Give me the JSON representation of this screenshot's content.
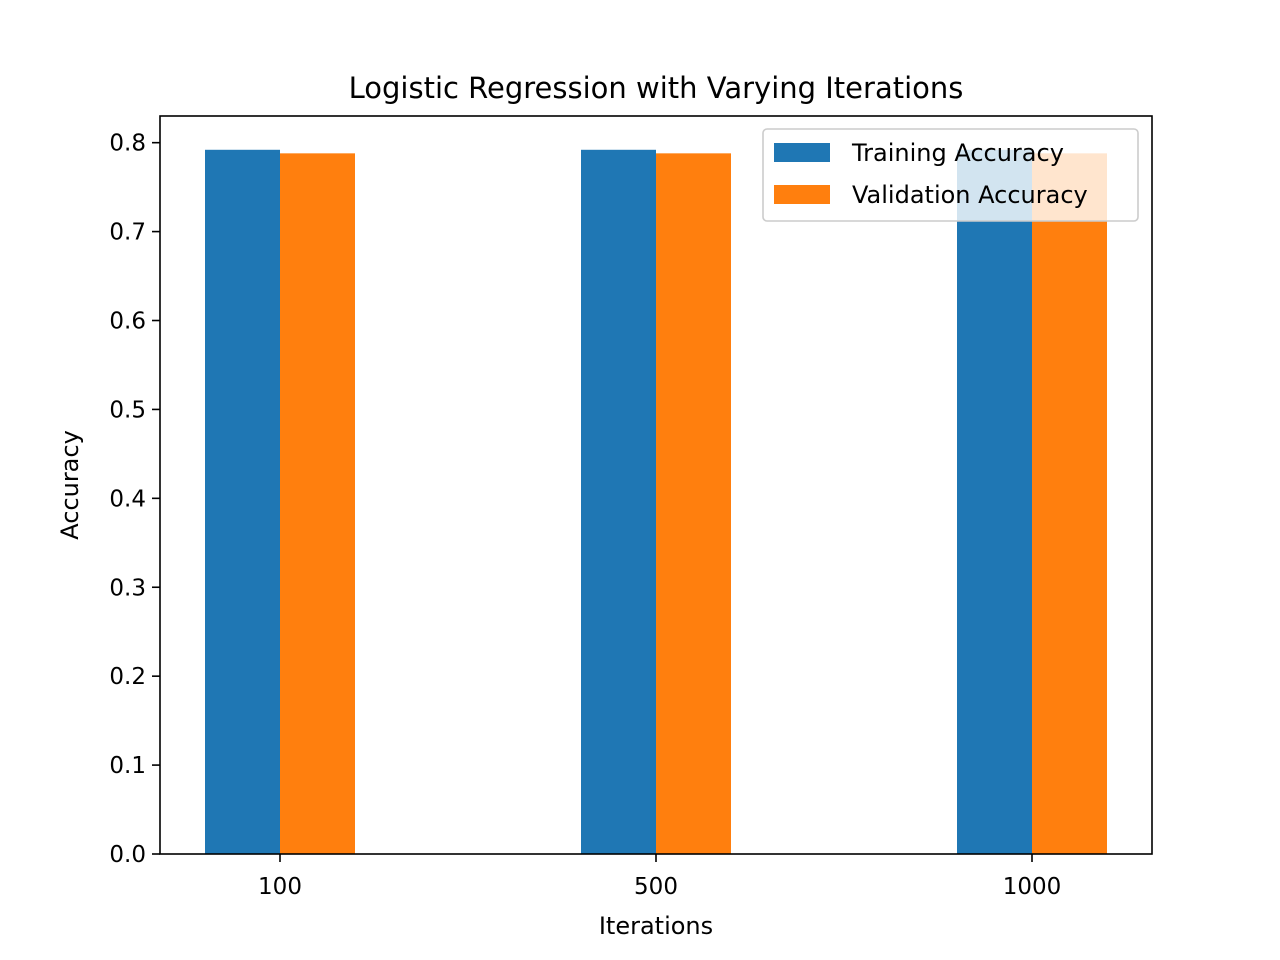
{
  "chart_data": {
    "type": "bar",
    "title": "Logistic Regression with Varying Iterations",
    "xlabel": "Iterations",
    "ylabel": "Accuracy",
    "categories": [
      "100",
      "500",
      "1000"
    ],
    "series": [
      {
        "name": "Training Accuracy",
        "values": [
          0.792,
          0.792,
          0.792
        ],
        "color": "#1f77b4"
      },
      {
        "name": "Validation Accuracy",
        "values": [
          0.788,
          0.788,
          0.788
        ],
        "color": "#ff7f0e"
      }
    ],
    "ylim": [
      0,
      0.83
    ],
    "yticks": [
      0.0,
      0.1,
      0.2,
      0.3,
      0.4,
      0.5,
      0.6,
      0.7,
      0.8
    ],
    "yticks_labels": [
      "0.0",
      "0.1",
      "0.2",
      "0.3",
      "0.4",
      "0.5",
      "0.6",
      "0.7",
      "0.8"
    ],
    "grid": false,
    "legend": "top-right"
  }
}
